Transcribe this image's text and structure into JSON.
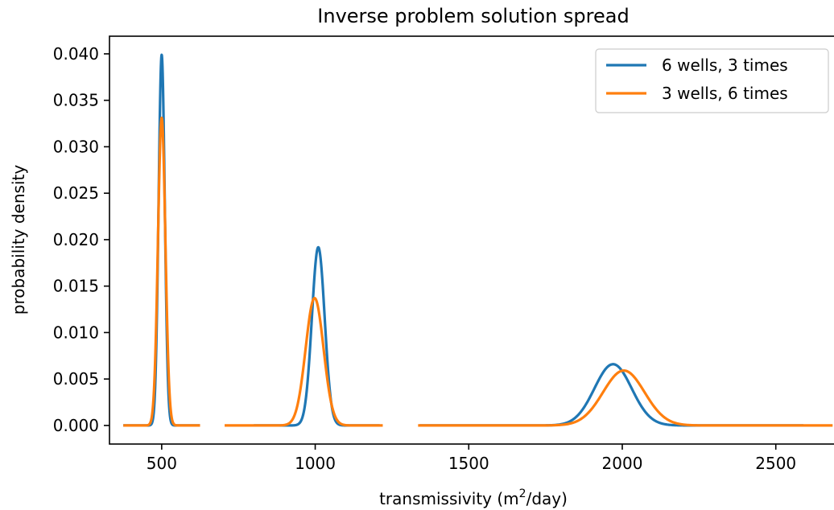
{
  "chart_data": {
    "type": "line",
    "title": "Inverse problem solution spread",
    "xlabel_main": "transmissivity (m",
    "xlabel_sup": "2",
    "xlabel_end": "/day)",
    "ylabel": "probability density",
    "xlim": [
      330,
      2700
    ],
    "ylim": [
      -0.002,
      0.0419
    ],
    "x_ticks": [
      500,
      1000,
      1500,
      2000,
      2500
    ],
    "x_tick_labels": [
      "500",
      "1000",
      "1500",
      "2000",
      "2500"
    ],
    "y_ticks": [
      0.0,
      0.005,
      0.01,
      0.015,
      0.02,
      0.025,
      0.03,
      0.035,
      0.04
    ],
    "y_tick_labels": [
      "0.000",
      "0.005",
      "0.010",
      "0.015",
      "0.020",
      "0.025",
      "0.030",
      "0.035",
      "0.040"
    ],
    "grid": false,
    "legend_position": "top-right",
    "series": [
      {
        "name": "6 wells, 3 times",
        "color": "#1f77b4",
        "segments": [
          {
            "x_range": [
              375,
              625
            ],
            "mu": 500,
            "sigma": 10.0
          },
          {
            "x_range": [
              800,
              1210
            ],
            "mu": 1010,
            "sigma": 20.8
          },
          {
            "x_range": [
              1340,
              2590
            ],
            "mu": 1970,
            "sigma": 60.5
          }
        ]
      },
      {
        "name": "3 wells, 6 times",
        "color": "#ff7f0e",
        "segments": [
          {
            "x_range": [
              375,
              625
            ],
            "mu": 500,
            "sigma": 12.05
          },
          {
            "x_range": [
              705,
              1220
            ],
            "mu": 998,
            "sigma": 29.1
          },
          {
            "x_range": [
              1335,
              2685
            ],
            "mu": 2005,
            "sigma": 67.5
          }
        ]
      }
    ]
  }
}
